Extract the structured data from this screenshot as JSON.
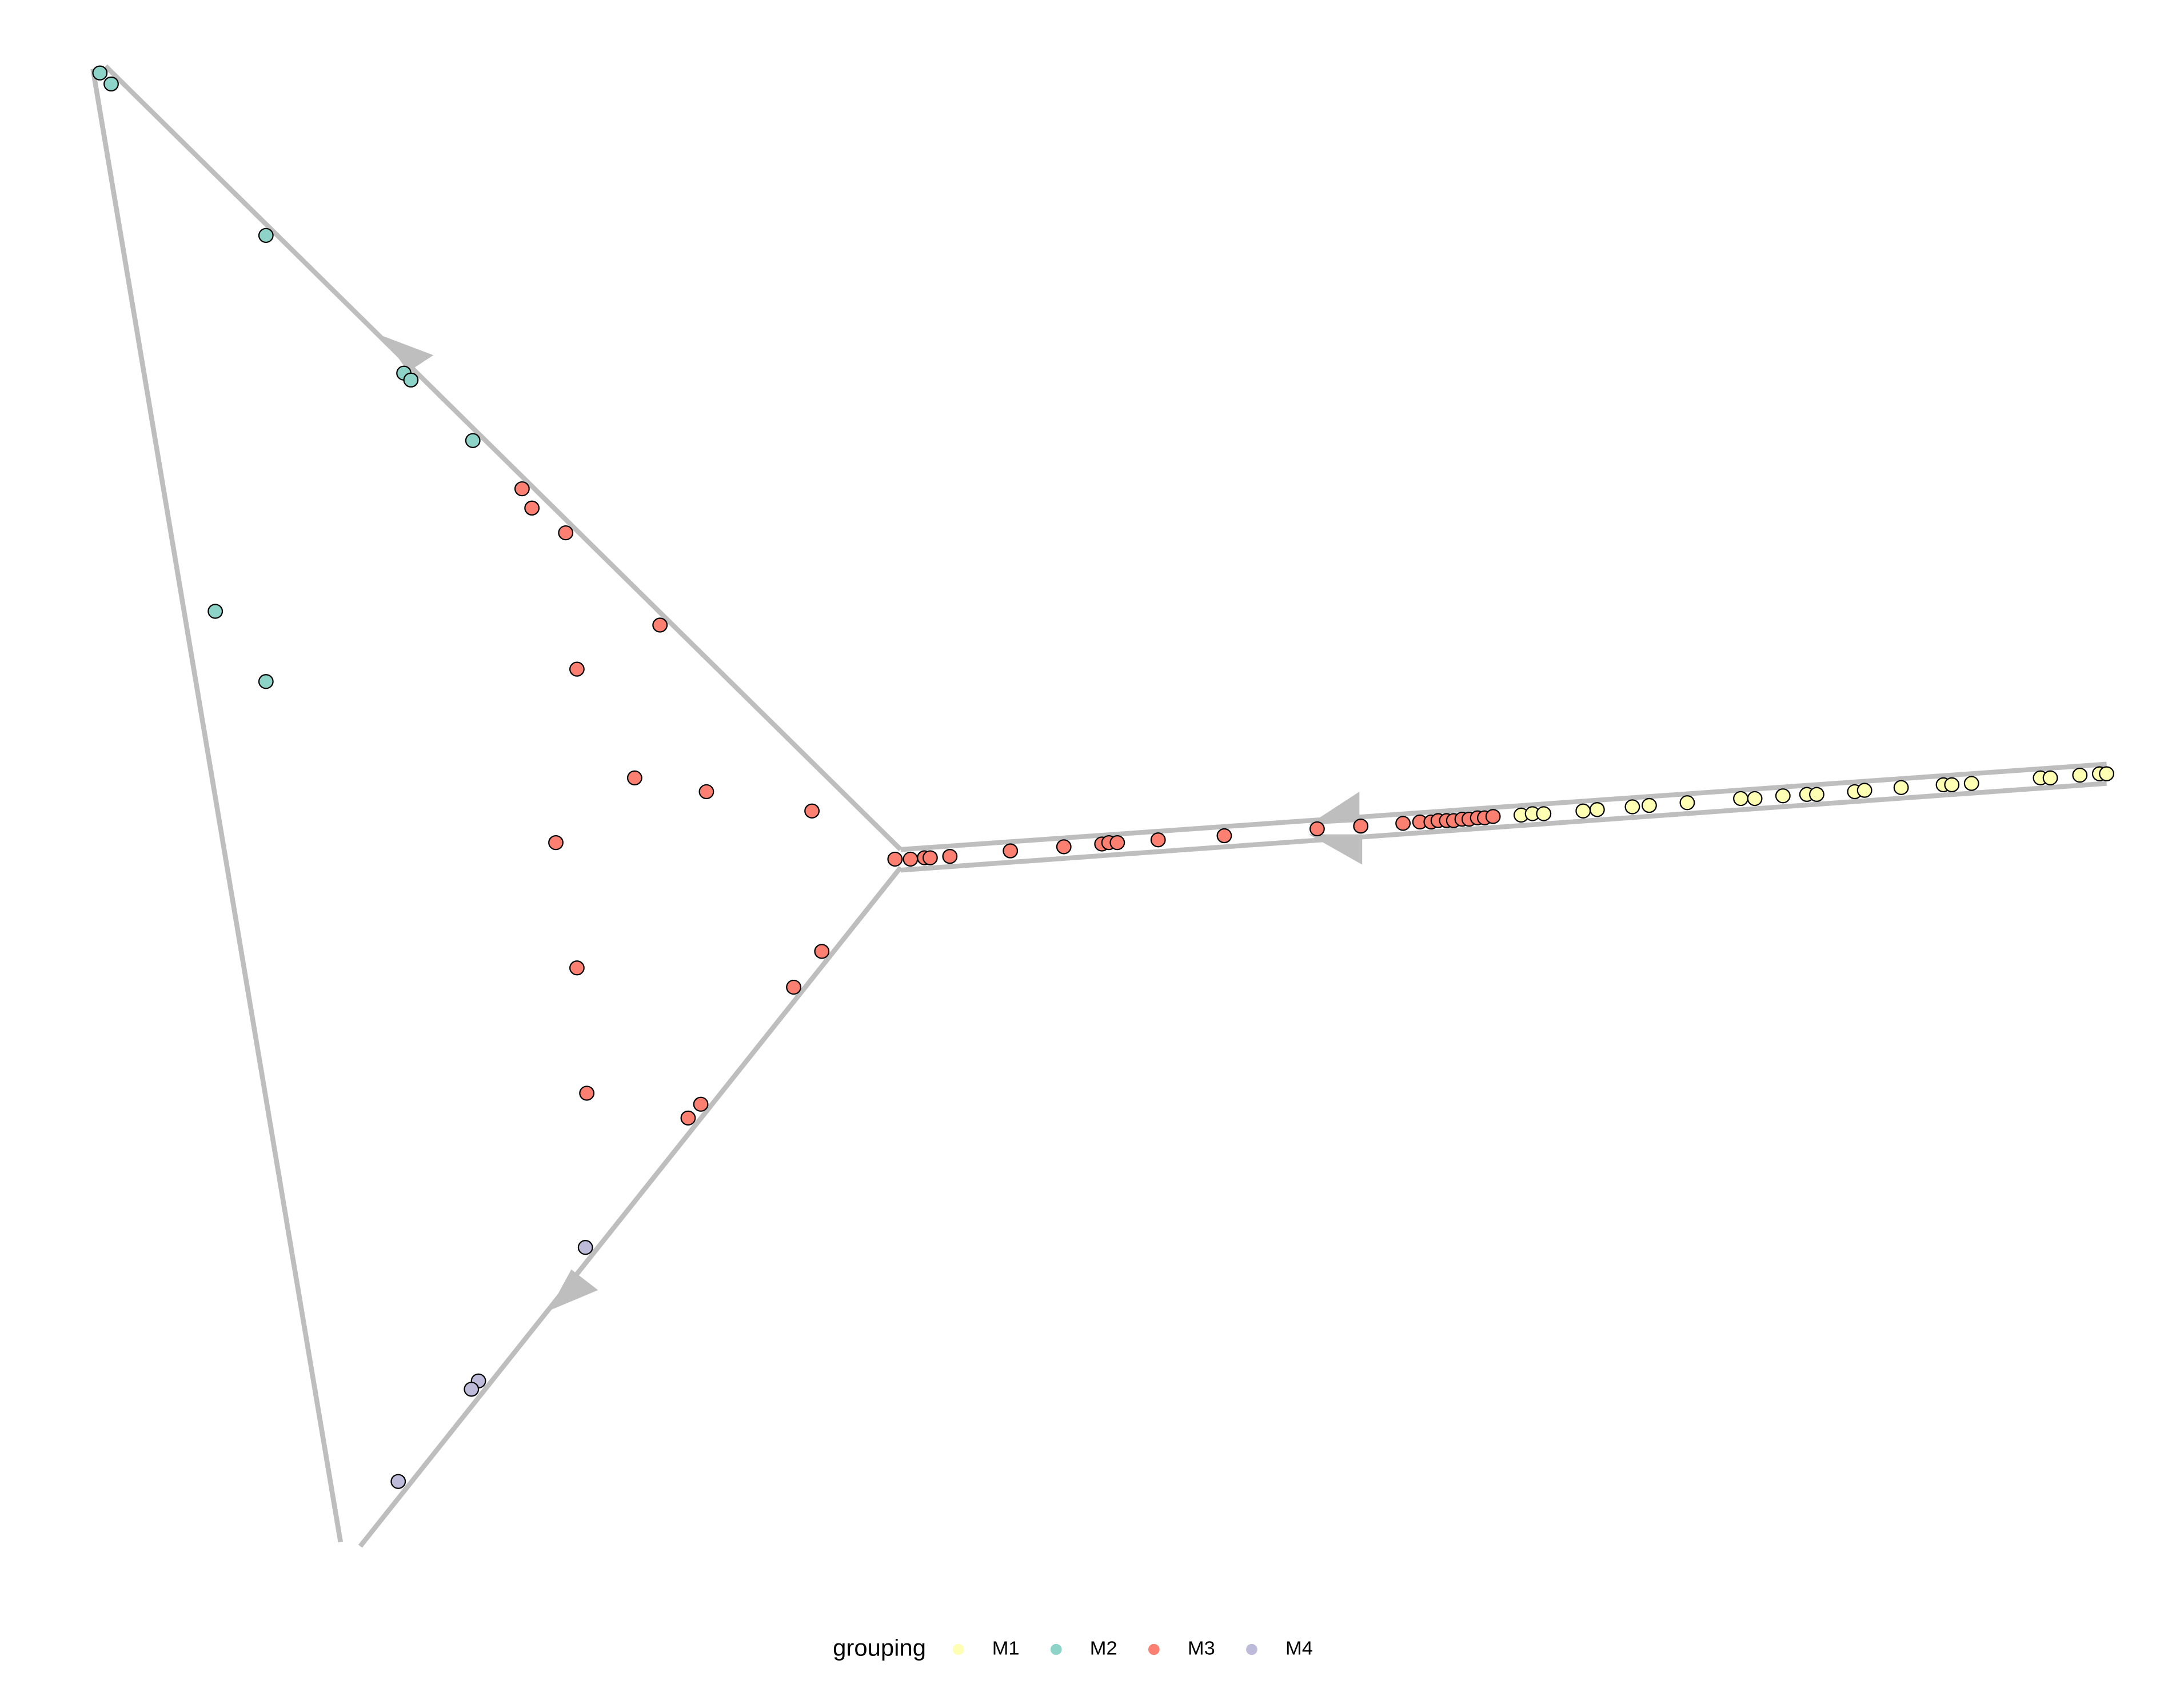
{
  "chart_data": {
    "type": "scatter",
    "legend_title": "grouping",
    "legend": "bottom",
    "xlim": [
      0,
      1552
    ],
    "ylim": [
      1226,
      0
    ],
    "series": [
      {
        "name": "M1",
        "color": "#FFFFB3",
        "x": [
          1081,
          1089,
          1097,
          1125,
          1135,
          1160,
          1172,
          1199,
          1237,
          1247,
          1267,
          1284,
          1291,
          1318,
          1325,
          1351,
          1381,
          1387,
          1401,
          1450,
          1457,
          1478,
          1492,
          1497
        ],
        "y": [
          592,
          591,
          591,
          589,
          588,
          586,
          585,
          583,
          580,
          580,
          578,
          577,
          577,
          575,
          574,
          572,
          570,
          570,
          569,
          565,
          565,
          563,
          562,
          562
        ]
      },
      {
        "name": "M2",
        "color": "#8DD3C7",
        "x": [
          71,
          79,
          189,
          287,
          292,
          336,
          153,
          189
        ],
        "y": [
          53,
          61,
          171,
          271,
          276,
          320,
          444,
          495
        ]
      },
      {
        "name": "M3",
        "color": "#FB8072",
        "x": [
          371,
          378,
          402,
          469,
          410,
          451,
          502,
          577,
          395,
          584,
          410,
          564,
          417,
          498,
          489,
          636,
          647,
          657,
          661,
          675,
          718,
          756,
          783,
          788,
          794,
          823,
          870,
          936,
          967,
          997,
          1009,
          1017,
          1022,
          1028,
          1033,
          1039,
          1044,
          1050,
          1055,
          1061
        ],
        "y": [
          355,
          369,
          387,
          454,
          486,
          565,
          575,
          589,
          612,
          691,
          703,
          717,
          794,
          802,
          812,
          624,
          624,
          623,
          623,
          622,
          618,
          615,
          613,
          612,
          612,
          610,
          607,
          602,
          600,
          598,
          597,
          597,
          596,
          596,
          596,
          595,
          595,
          594,
          594,
          593
        ]
      },
      {
        "name": "M4",
        "color": "#BEBADA",
        "x": [
          416,
          340,
          335,
          283
        ],
        "y": [
          906,
          1003,
          1009,
          1076
        ]
      }
    ]
  }
}
